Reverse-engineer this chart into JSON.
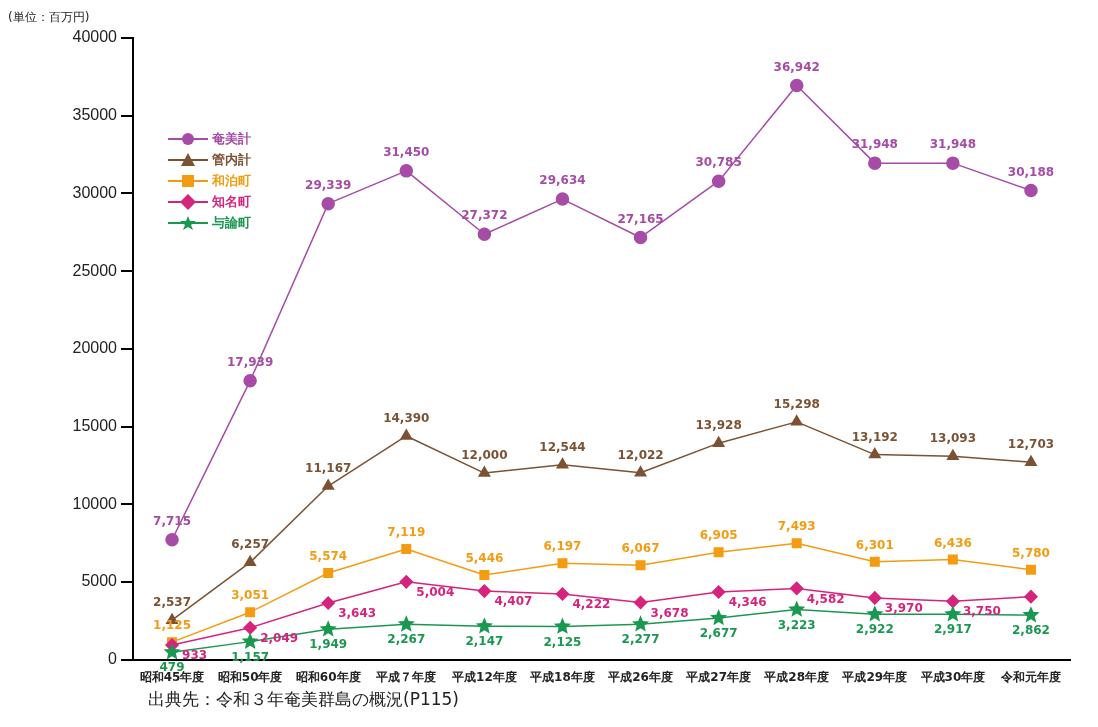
{
  "chart_data": {
    "type": "line",
    "ylabel": "(単位：百万円)",
    "categories": [
      "昭和45年度",
      "昭和50年度",
      "昭和60年度",
      "平成７年度",
      "平成12年度",
      "平成18年度",
      "平成26年度",
      "平成27年度",
      "平成28年度",
      "平成29年度",
      "平成30年度",
      "令和元年度"
    ],
    "series": [
      {
        "name": "奄美計",
        "color": "#a64ca6",
        "marker": "circle",
        "values": [
          7715,
          17939,
          29339,
          31450,
          27372,
          29634,
          27165,
          30785,
          36942,
          31948,
          31948,
          30188
        ],
        "value_labels": [
          "7,715",
          "17,939",
          "29,339",
          "31,450",
          "27,372",
          "29,634",
          "27,165",
          "30,785",
          "36,942",
          "31,948",
          "31,948",
          "30,188"
        ]
      },
      {
        "name": "管内計",
        "color": "#7b5233",
        "marker": "triangle",
        "values": [
          2537,
          6257,
          11167,
          14390,
          12000,
          12544,
          12022,
          13928,
          15298,
          13192,
          13093,
          12703
        ],
        "value_labels": [
          "2,537",
          "6,257",
          "11,167",
          "14,390",
          "12,000",
          "12,544",
          "12,022",
          "13,928",
          "15,298",
          "13,192",
          "13,093",
          "12,703"
        ]
      },
      {
        "name": "和泊町",
        "color": "#f39c12",
        "marker": "square",
        "values": [
          1125,
          3051,
          5574,
          7119,
          5446,
          6197,
          6067,
          6905,
          7493,
          6301,
          6436,
          5780
        ],
        "value_labels": [
          "1,125",
          "3,051",
          "5,574",
          "7,119",
          "5,446",
          "6,197",
          "6,067",
          "6,905",
          "7,493",
          "6,301",
          "6,436",
          "5,780"
        ]
      },
      {
        "name": "知名町",
        "color": "#d6247e",
        "marker": "diamond",
        "values": [
          933,
          2049,
          3643,
          5004,
          4407,
          4222,
          3678,
          4346,
          4582,
          3970,
          3750,
          4050
        ],
        "value_labels": [
          "933",
          "2,049",
          "3,643",
          "5,004",
          "4,407",
          "4,222",
          "3,678",
          "4,346",
          "4,582",
          "3,970",
          "3,750",
          null
        ]
      },
      {
        "name": "与論町",
        "color": "#1a9850",
        "marker": "star",
        "values": [
          479,
          1157,
          1949,
          2267,
          2147,
          2125,
          2277,
          2677,
          3223,
          2922,
          2917,
          2862
        ],
        "value_labels": [
          "479",
          "1,157",
          "1,949",
          "2,267",
          "2,147",
          "2,125",
          "2,277",
          "2,677",
          "3,223",
          "2,922",
          "2,917",
          "2,862"
        ]
      }
    ],
    "ylim": [
      0,
      40000
    ],
    "yticks": [
      0,
      5000,
      10000,
      15000,
      20000,
      25000,
      30000,
      35000,
      40000
    ],
    "grid": false,
    "legend": "top left",
    "line_style": "solid",
    "annotations": [
      "出典先：令和３年奄美群島の概況(P115)"
    ]
  }
}
